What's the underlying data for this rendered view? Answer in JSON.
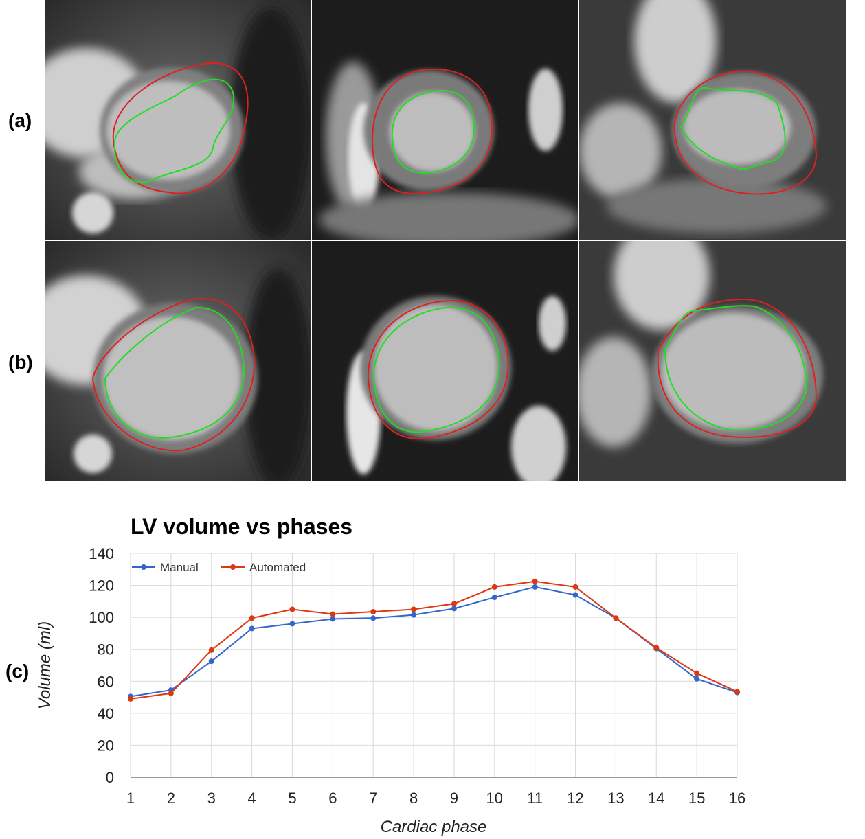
{
  "figure": {
    "row_labels": [
      "(a)",
      "(b)",
      "(c)"
    ],
    "contour_colors": {
      "outer": "#e02020",
      "inner": "#22dd22"
    }
  },
  "chart_data": {
    "type": "line",
    "title": "LV volume vs phases",
    "xlabel": "Cardiac phase",
    "ylabel": "Volume (ml)",
    "categories": [
      "1",
      "2",
      "3",
      "4",
      "5",
      "6",
      "7",
      "8",
      "9",
      "10",
      "11",
      "12",
      "13",
      "14",
      "15",
      "16"
    ],
    "ylim": [
      0,
      140
    ],
    "yticks": [
      0,
      20,
      40,
      60,
      80,
      100,
      120,
      140
    ],
    "grid": true,
    "legend_position": "top-left",
    "series": [
      {
        "name": "Manual",
        "color": "#3366cc",
        "values": [
          50.5,
          54.5,
          72.5,
          93,
          96,
          99,
          99.5,
          101.5,
          105.5,
          112.5,
          119,
          114,
          99.5,
          80.5,
          61.5,
          53
        ]
      },
      {
        "name": "Automated",
        "color": "#dc3912",
        "values": [
          49,
          52.5,
          79.5,
          99.5,
          105,
          102,
          103.5,
          105,
          108.5,
          119,
          122.5,
          119,
          99.5,
          81,
          65,
          53.5
        ]
      }
    ]
  }
}
